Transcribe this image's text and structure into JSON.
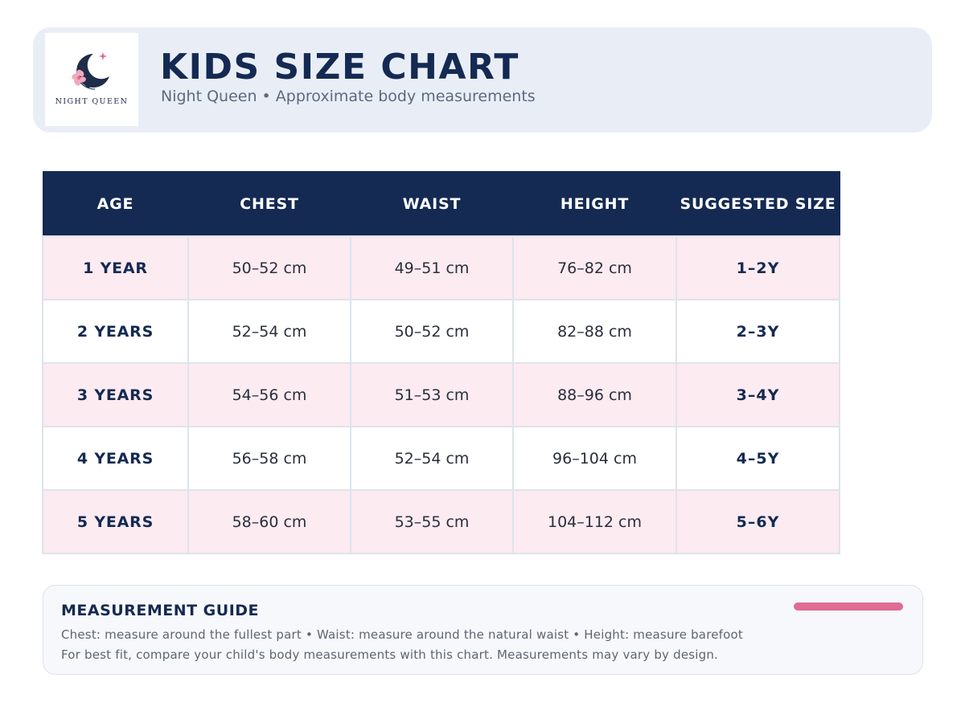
{
  "header": {
    "brand_text": "NIGHT QUEEN",
    "title": "KIDS SIZE CHART",
    "subtitle": "Night Queen • Approximate body measurements"
  },
  "table": {
    "columns": [
      "AGE",
      "CHEST",
      "WAIST",
      "HEIGHT",
      "SUGGESTED SIZE"
    ],
    "rows": [
      {
        "age": "1 YEAR",
        "chest": "50–52 cm",
        "waist": "49–51 cm",
        "height": "76–82 cm",
        "size": "1–2Y"
      },
      {
        "age": "2 YEARS",
        "chest": "52–54 cm",
        "waist": "50–52 cm",
        "height": "82–88 cm",
        "size": "2–3Y"
      },
      {
        "age": "3 YEARS",
        "chest": "54–56 cm",
        "waist": "51–53 cm",
        "height": "88–96 cm",
        "size": "3–4Y"
      },
      {
        "age": "4 YEARS",
        "chest": "56–58 cm",
        "waist": "52–54 cm",
        "height": "96–104 cm",
        "size": "4–5Y"
      },
      {
        "age": "5 YEARS",
        "chest": "58–60 cm",
        "waist": "53–55 cm",
        "height": "104–112 cm",
        "size": "5–6Y"
      }
    ]
  },
  "guide": {
    "title": "MEASUREMENT GUIDE",
    "line1": "Chest: measure around the fullest part • Waist: measure around the natural waist • Height: measure barefoot",
    "line2": "For best fit, compare your child's body measurements with this chart. Measurements may vary by design."
  },
  "colors": {
    "navy": "#142a52",
    "pink_row": "#fcebf1",
    "accent": "#e06b93",
    "header_bg": "#e9eef6"
  },
  "icons": {
    "logo": "crescent-moon-flower-logo"
  }
}
